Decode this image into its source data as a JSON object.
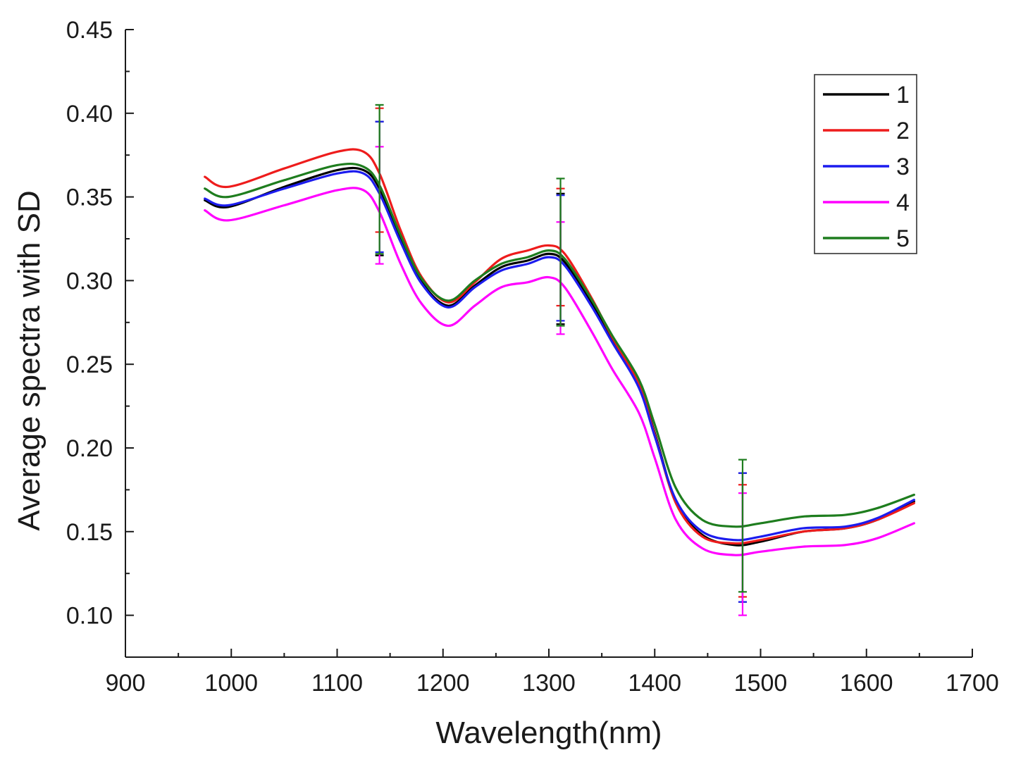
{
  "chart_data": {
    "type": "line",
    "title": "",
    "xlabel": "Wavelength(nm)",
    "ylabel": "Average spectra with SD",
    "xlim": [
      900,
      1700
    ],
    "ylim": [
      0.075,
      0.45
    ],
    "xticks": [
      "900",
      "1000",
      "1100",
      "1200",
      "1300",
      "1400",
      "1500",
      "1600",
      "1700"
    ],
    "yticks": [
      "0.10",
      "0.15",
      "0.20",
      "0.25",
      "0.30",
      "0.35",
      "0.40",
      "0.45"
    ],
    "legend_position": "top-right",
    "series": [
      {
        "name": "1",
        "color": "#000000",
        "x": [
          975,
          997,
          1050,
          1100,
          1125,
          1140,
          1160,
          1180,
          1205,
          1230,
          1255,
          1280,
          1300,
          1315,
          1340,
          1360,
          1385,
          1400,
          1420,
          1445,
          1475,
          1500,
          1540,
          1580,
          1610,
          1645
        ],
        "values": [
          0.348,
          0.344,
          0.356,
          0.366,
          0.366,
          0.355,
          0.325,
          0.299,
          0.285,
          0.297,
          0.308,
          0.312,
          0.316,
          0.311,
          0.287,
          0.265,
          0.238,
          0.209,
          0.168,
          0.148,
          0.142,
          0.144,
          0.15,
          0.152,
          0.157,
          0.168
        ],
        "error_bars": [
          {
            "x": 1140,
            "low": 0.315,
            "high": 0.395
          },
          {
            "x": 1311,
            "low": 0.274,
            "high": 0.352
          },
          {
            "x": 1483,
            "low": 0.108,
            "high": 0.185
          }
        ]
      },
      {
        "name": "2",
        "color": "#ee1c1c",
        "x": [
          975,
          997,
          1050,
          1100,
          1125,
          1140,
          1160,
          1180,
          1205,
          1230,
          1255,
          1280,
          1300,
          1315,
          1340,
          1360,
          1385,
          1400,
          1420,
          1445,
          1475,
          1500,
          1540,
          1580,
          1610,
          1645
        ],
        "values": [
          0.362,
          0.356,
          0.367,
          0.377,
          0.377,
          0.364,
          0.33,
          0.302,
          0.287,
          0.299,
          0.313,
          0.318,
          0.321,
          0.316,
          0.29,
          0.266,
          0.238,
          0.208,
          0.167,
          0.147,
          0.143,
          0.145,
          0.15,
          0.152,
          0.157,
          0.167
        ],
        "error_bars": [
          {
            "x": 1140,
            "low": 0.329,
            "high": 0.403
          },
          {
            "x": 1311,
            "low": 0.285,
            "high": 0.355
          },
          {
            "x": 1483,
            "low": 0.111,
            "high": 0.178
          }
        ]
      },
      {
        "name": "3",
        "color": "#1c1cee",
        "x": [
          975,
          997,
          1050,
          1100,
          1125,
          1140,
          1160,
          1180,
          1205,
          1230,
          1255,
          1280,
          1300,
          1315,
          1340,
          1360,
          1385,
          1400,
          1420,
          1445,
          1475,
          1500,
          1540,
          1580,
          1610,
          1645
        ],
        "values": [
          0.349,
          0.345,
          0.355,
          0.364,
          0.364,
          0.352,
          0.323,
          0.298,
          0.284,
          0.296,
          0.306,
          0.31,
          0.314,
          0.309,
          0.285,
          0.263,
          0.236,
          0.207,
          0.169,
          0.15,
          0.145,
          0.147,
          0.152,
          0.153,
          0.158,
          0.169
        ],
        "error_bars": [
          {
            "x": 1140,
            "low": 0.317,
            "high": 0.395
          },
          {
            "x": 1311,
            "low": 0.276,
            "high": 0.351
          },
          {
            "x": 1483,
            "low": 0.108,
            "high": 0.185
          }
        ]
      },
      {
        "name": "4",
        "color": "#ff00ff",
        "x": [
          975,
          997,
          1050,
          1100,
          1125,
          1140,
          1160,
          1180,
          1205,
          1230,
          1255,
          1280,
          1300,
          1315,
          1340,
          1360,
          1385,
          1400,
          1420,
          1445,
          1475,
          1500,
          1540,
          1580,
          1610,
          1645
        ],
        "values": [
          0.342,
          0.336,
          0.345,
          0.354,
          0.354,
          0.341,
          0.31,
          0.286,
          0.273,
          0.285,
          0.296,
          0.299,
          0.302,
          0.296,
          0.27,
          0.247,
          0.221,
          0.194,
          0.157,
          0.14,
          0.136,
          0.138,
          0.141,
          0.142,
          0.146,
          0.155
        ],
        "error_bars": [
          {
            "x": 1140,
            "low": 0.31,
            "high": 0.38
          },
          {
            "x": 1311,
            "low": 0.268,
            "high": 0.335
          },
          {
            "x": 1483,
            "low": 0.1,
            "high": 0.173
          }
        ]
      },
      {
        "name": "5",
        "color": "#1e7d1e",
        "x": [
          975,
          997,
          1050,
          1100,
          1125,
          1140,
          1160,
          1180,
          1205,
          1230,
          1255,
          1280,
          1300,
          1315,
          1340,
          1360,
          1385,
          1400,
          1420,
          1445,
          1475,
          1500,
          1540,
          1580,
          1610,
          1645
        ],
        "values": [
          0.355,
          0.35,
          0.36,
          0.369,
          0.368,
          0.357,
          0.327,
          0.301,
          0.288,
          0.3,
          0.31,
          0.314,
          0.318,
          0.313,
          0.289,
          0.267,
          0.241,
          0.214,
          0.176,
          0.157,
          0.153,
          0.155,
          0.159,
          0.16,
          0.164,
          0.172
        ],
        "error_bars": [
          {
            "x": 1140,
            "low": 0.316,
            "high": 0.405
          },
          {
            "x": 1311,
            "low": 0.273,
            "high": 0.361
          },
          {
            "x": 1483,
            "low": 0.114,
            "high": 0.193
          }
        ]
      }
    ]
  }
}
